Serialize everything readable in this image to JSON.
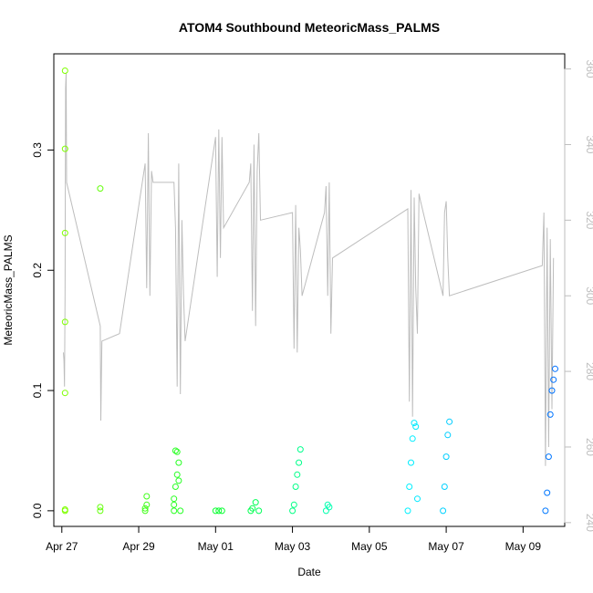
{
  "chart_data": {
    "type": "scatter",
    "title": "ATOM4 Southbound MeteoricMass_PALMS",
    "xlabel": "Date",
    "ylabel": "MeteoricMass_PALMS",
    "x_axis": {
      "type": "date",
      "range": [
        "2018-04-26T19:00",
        "2018-05-10T02:00"
      ],
      "ticks": [
        {
          "value": "2018-04-27",
          "label": "Apr 27"
        },
        {
          "value": "2018-04-29",
          "label": "Apr 29"
        },
        {
          "value": "2018-05-01",
          "label": "May 01"
        },
        {
          "value": "2018-05-03",
          "label": "May 03"
        },
        {
          "value": "2018-05-05",
          "label": "May 05"
        },
        {
          "value": "2018-05-07",
          "label": "May 07"
        },
        {
          "value": "2018-05-09",
          "label": "May 09"
        }
      ]
    },
    "y_left": {
      "range": [
        -0.013,
        0.38
      ],
      "ticks": [
        0.0,
        0.1,
        0.2,
        0.3
      ],
      "tick_labels": [
        "0.0",
        "0.1",
        "0.2",
        "0.3"
      ]
    },
    "y_right": {
      "range": [
        239,
        364
      ],
      "ticks": [
        240,
        260,
        280,
        300,
        320,
        340,
        360
      ],
      "tick_labels": [
        "240",
        "260",
        "280",
        "300",
        "320",
        "340",
        "360"
      ],
      "color": "#bdbdbd"
    },
    "grid": false,
    "colors": {
      "line": "#bdbdbd",
      "points_gradient": [
        "#7fff00",
        "#00ff33",
        "#00ffff",
        "#0070ff"
      ]
    },
    "series": [
      {
        "kind": "line",
        "axis": "right",
        "points": [
          [
            "2018-04-27T01:00",
            285
          ],
          [
            "2018-04-27T01:20",
            283
          ],
          [
            "2018-04-27T01:40",
            276
          ],
          [
            "2018-04-27T02:00",
            300
          ],
          [
            "2018-04-27T02:20",
            355
          ],
          [
            "2018-04-27T02:40",
            359
          ],
          [
            "2018-04-27T03:00",
            330
          ],
          [
            "2018-04-28T00:00",
            292
          ],
          [
            "2018-04-28T00:20",
            267
          ],
          [
            "2018-04-28T00:40",
            278
          ],
          [
            "2018-04-28T01:00",
            288
          ],
          [
            "2018-04-28T12:00",
            290
          ],
          [
            "2018-04-29T04:00",
            335
          ],
          [
            "2018-04-29T05:00",
            302
          ],
          [
            "2018-04-29T06:00",
            343
          ],
          [
            "2018-04-29T07:00",
            300
          ],
          [
            "2018-04-29T08:00",
            333
          ],
          [
            "2018-04-29T09:00",
            330
          ],
          [
            "2018-04-29T22:00",
            330
          ],
          [
            "2018-04-29T23:00",
            318
          ],
          [
            "2018-04-30T00:00",
            276
          ],
          [
            "2018-04-30T01:00",
            335
          ],
          [
            "2018-04-30T02:00",
            274
          ],
          [
            "2018-04-30T03:00",
            320
          ],
          [
            "2018-04-30T04:00",
            300
          ],
          [
            "2018-04-30T05:00",
            288
          ],
          [
            "2018-05-01T00:00",
            342
          ],
          [
            "2018-05-01T01:00",
            305
          ],
          [
            "2018-05-01T02:00",
            344
          ],
          [
            "2018-05-01T03:00",
            310
          ],
          [
            "2018-05-01T04:00",
            342
          ],
          [
            "2018-05-01T05:00",
            318
          ],
          [
            "2018-05-01T21:00",
            330
          ],
          [
            "2018-05-01T22:00",
            335
          ],
          [
            "2018-05-01T23:00",
            296
          ],
          [
            "2018-05-02T00:00",
            340
          ],
          [
            "2018-05-02T01:00",
            292
          ],
          [
            "2018-05-02T02:00",
            333
          ],
          [
            "2018-05-02T03:00",
            343
          ],
          [
            "2018-05-02T04:00",
            320
          ],
          [
            "2018-05-03T00:00",
            322
          ],
          [
            "2018-05-03T01:00",
            286
          ],
          [
            "2018-05-03T02:00",
            324
          ],
          [
            "2018-05-03T03:00",
            285
          ],
          [
            "2018-05-03T04:00",
            318
          ],
          [
            "2018-05-03T05:00",
            312
          ],
          [
            "2018-05-03T06:00",
            300
          ],
          [
            "2018-05-03T20:00",
            322
          ],
          [
            "2018-05-03T21:00",
            329
          ],
          [
            "2018-05-03T22:00",
            300
          ],
          [
            "2018-05-03T23:00",
            330
          ],
          [
            "2018-05-04T00:00",
            290
          ],
          [
            "2018-05-04T01:00",
            310
          ],
          [
            "2018-05-06T00:00",
            323
          ],
          [
            "2018-05-06T01:00",
            272
          ],
          [
            "2018-05-06T02:00",
            328
          ],
          [
            "2018-05-06T03:00",
            268
          ],
          [
            "2018-05-06T04:00",
            326
          ],
          [
            "2018-05-06T05:00",
            302
          ],
          [
            "2018-05-06T06:00",
            290
          ],
          [
            "2018-05-06T07:00",
            327
          ],
          [
            "2018-05-06T08:00",
            325
          ],
          [
            "2018-05-06T22:00",
            300
          ],
          [
            "2018-05-06T23:00",
            322
          ],
          [
            "2018-05-07T00:00",
            325
          ],
          [
            "2018-05-07T01:00",
            310
          ],
          [
            "2018-05-07T02:00",
            300
          ],
          [
            "2018-05-09T12:00",
            308
          ],
          [
            "2018-05-09T13:00",
            322
          ],
          [
            "2018-05-09T14:00",
            255
          ],
          [
            "2018-05-09T15:00",
            318
          ],
          [
            "2018-05-09T16:00",
            260
          ],
          [
            "2018-05-09T17:00",
            315
          ],
          [
            "2018-05-09T18:00",
            270
          ],
          [
            "2018-05-09T19:00",
            310
          ]
        ]
      },
      {
        "kind": "scatter",
        "axis": "left",
        "points": [
          [
            "2018-04-27T02:00",
            0.0
          ],
          [
            "2018-04-27T02:00",
            0.001
          ],
          [
            "2018-04-27T02:00",
            0.098
          ],
          [
            "2018-04-27T02:00",
            0.157
          ],
          [
            "2018-04-27T02:00",
            0.231
          ],
          [
            "2018-04-27T02:00",
            0.301
          ],
          [
            "2018-04-27T02:00",
            0.366
          ],
          [
            "2018-04-28T00:00",
            0.0
          ],
          [
            "2018-04-28T00:00",
            0.003
          ],
          [
            "2018-04-28T00:00",
            0.268
          ],
          [
            "2018-04-29T04:00",
            0.0
          ],
          [
            "2018-04-29T04:00",
            0.002
          ],
          [
            "2018-04-29T05:00",
            0.005
          ],
          [
            "2018-04-29T05:00",
            0.012
          ],
          [
            "2018-04-29T22:00",
            0.0
          ],
          [
            "2018-04-29T22:00",
            0.005
          ],
          [
            "2018-04-29T22:00",
            0.01
          ],
          [
            "2018-04-29T23:00",
            0.02
          ],
          [
            "2018-04-29T23:00",
            0.05
          ],
          [
            "2018-04-30T00:00",
            0.03
          ],
          [
            "2018-04-30T00:00",
            0.049
          ],
          [
            "2018-04-30T01:00",
            0.025
          ],
          [
            "2018-04-30T01:00",
            0.04
          ],
          [
            "2018-04-30T02:00",
            0.0
          ],
          [
            "2018-05-01T00:00",
            0.0
          ],
          [
            "2018-05-01T02:00",
            0.0
          ],
          [
            "2018-05-01T04:00",
            0.0
          ],
          [
            "2018-05-01T22:00",
            0.0
          ],
          [
            "2018-05-01T23:00",
            0.002
          ],
          [
            "2018-05-02T01:00",
            0.007
          ],
          [
            "2018-05-02T03:00",
            0.0
          ],
          [
            "2018-05-03T00:00",
            0.0
          ],
          [
            "2018-05-03T01:00",
            0.005
          ],
          [
            "2018-05-03T02:00",
            0.02
          ],
          [
            "2018-05-03T03:00",
            0.03
          ],
          [
            "2018-05-03T04:00",
            0.04
          ],
          [
            "2018-05-03T05:00",
            0.051
          ],
          [
            "2018-05-03T21:00",
            0.0
          ],
          [
            "2018-05-03T22:00",
            0.005
          ],
          [
            "2018-05-03T23:00",
            0.003
          ],
          [
            "2018-05-06T00:00",
            0.0
          ],
          [
            "2018-05-06T01:00",
            0.02
          ],
          [
            "2018-05-06T02:00",
            0.04
          ],
          [
            "2018-05-06T03:00",
            0.06
          ],
          [
            "2018-05-06T04:00",
            0.073
          ],
          [
            "2018-05-06T05:00",
            0.07
          ],
          [
            "2018-05-06T06:00",
            0.01
          ],
          [
            "2018-05-06T22:00",
            0.0
          ],
          [
            "2018-05-06T23:00",
            0.02
          ],
          [
            "2018-05-07T00:00",
            0.045
          ],
          [
            "2018-05-07T01:00",
            0.063
          ],
          [
            "2018-05-07T02:00",
            0.074
          ],
          [
            "2018-05-09T14:00",
            0.0
          ],
          [
            "2018-05-09T15:00",
            0.015
          ],
          [
            "2018-05-09T16:00",
            0.045
          ],
          [
            "2018-05-09T17:00",
            0.08
          ],
          [
            "2018-05-09T18:00",
            0.1
          ],
          [
            "2018-05-09T19:00",
            0.109
          ],
          [
            "2018-05-09T20:00",
            0.118
          ]
        ]
      }
    ]
  }
}
